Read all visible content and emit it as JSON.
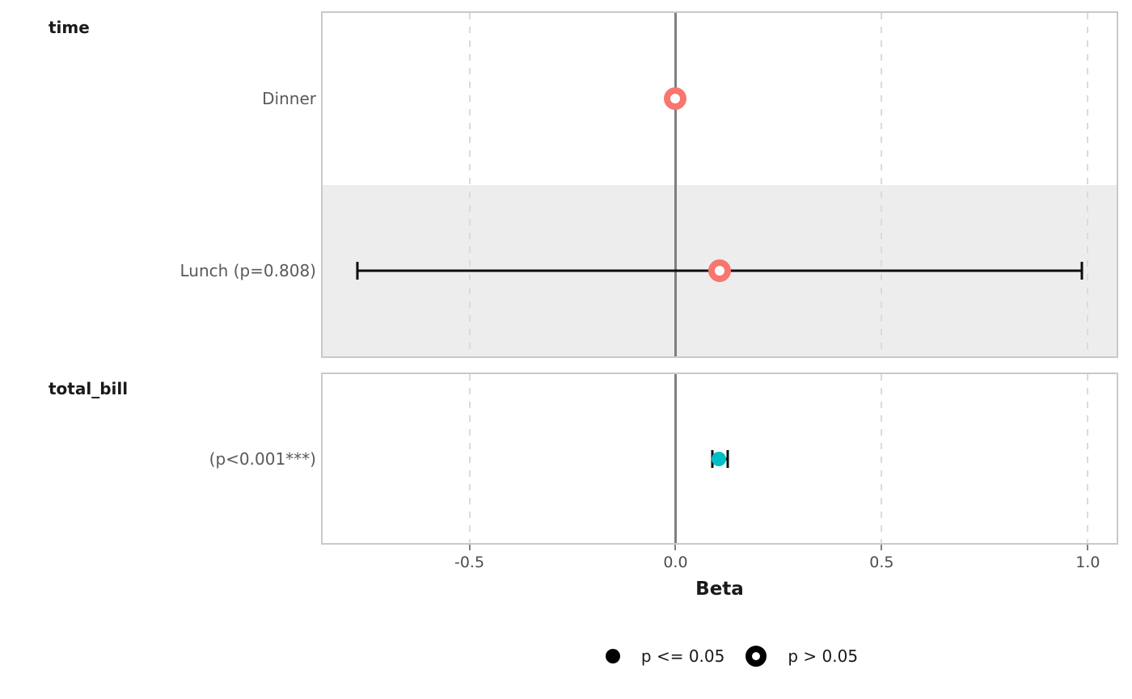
{
  "chart_data": {
    "type": "forest",
    "title": "",
    "xlabel": "Beta",
    "axis": {
      "label": "Beta",
      "min": -0.856,
      "max": 1.07,
      "ticks": [
        -0.5,
        0.0,
        0.5,
        1.0
      ],
      "tick_labels": [
        "-0.5",
        "0.0",
        "0.5",
        "1.0"
      ],
      "gridlines_dashed": [
        -0.5,
        0.5,
        1.0
      ],
      "zero_line": 0.0,
      "grid": "dashed-vertical"
    },
    "panels": [
      {
        "header": "time",
        "rows": [
          {
            "label": "Dinner",
            "estimate": 0.0,
            "ci": null,
            "marker": "open",
            "significance": "p > 0.05",
            "color": "#f8766d",
            "striped": false
          },
          {
            "label": "Lunch (p=0.808)",
            "estimate": 0.107,
            "ci": [
              -0.771,
              0.985
            ],
            "marker": "open",
            "significance": "p > 0.05",
            "color": "#f8766d",
            "striped": true
          }
        ]
      },
      {
        "header": "total_bill",
        "rows": [
          {
            "label": "(p<0.001***)",
            "estimate": 0.105,
            "ci": [
              0.089,
              0.126
            ],
            "marker": "filled",
            "significance": "p <= 0.05",
            "color": "#00bfc4",
            "striped": false
          }
        ]
      }
    ],
    "legend": [
      {
        "label": "p <= 0.05",
        "marker": "filled"
      },
      {
        "label": "p > 0.05",
        "marker": "open"
      }
    ],
    "legend_position": "bottom-center",
    "colors": {
      "time": "#f8766d",
      "total_bill": "#00bfc4",
      "error_bar": "#0d0d0d",
      "zero_line": "#7f7f7f",
      "gridline": "#dbdbdb",
      "stripe": "#ededed",
      "panel_border": "#c9c9c9",
      "row_label_text": "#595959",
      "tick_text": "#4d4d4d",
      "header_text": "#1a1a1a"
    }
  }
}
